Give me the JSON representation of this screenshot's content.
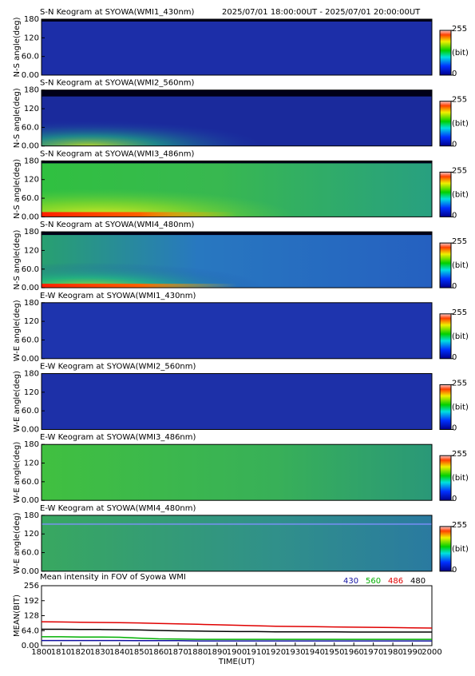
{
  "chart_data": [
    {
      "type": "heatmap",
      "title": "S-N Keogram at SYOWA(WMI1_430nm)",
      "subtitle": "2025/07/01 18:00:00UT - 2025/07/01 20:00:00UT",
      "ylabel": "N-S angle(deg)",
      "ylim": [
        0,
        180
      ],
      "yticks": [
        180,
        120,
        {
          "value": 60,
          "label": "60.0"
        },
        {
          "value": 0,
          "label": "0.00"
        }
      ],
      "colorbar": {
        "lim": [
          0,
          255
        ],
        "ticks": [
          255,
          0
        ],
        "label": "(bit)"
      }
    },
    {
      "type": "heatmap",
      "title": "S-N Keogram at SYOWA(WMI2_560nm)",
      "ylabel": "N-S angle(deg)",
      "ylim": [
        0,
        180
      ],
      "yticks": [
        180,
        120,
        {
          "value": 60,
          "label": "60.0"
        },
        {
          "value": 0,
          "label": "0.00"
        }
      ],
      "colorbar": {
        "lim": [
          0,
          255
        ],
        "ticks": [
          255,
          0
        ],
        "label": "(bit)"
      }
    },
    {
      "type": "heatmap",
      "title": "S-N Keogram at SYOWA(WMI3_486nm)",
      "ylabel": "N-S angle(deg)",
      "ylim": [
        0,
        180
      ],
      "yticks": [
        180,
        120,
        {
          "value": 60,
          "label": "60.0"
        },
        {
          "value": 0,
          "label": "0.00"
        }
      ],
      "colorbar": {
        "lim": [
          0,
          255
        ],
        "ticks": [
          255,
          0
        ],
        "label": "(bit)"
      }
    },
    {
      "type": "heatmap",
      "title": "S-N Keogram at SYOWA(WMI4_480nm)",
      "ylabel": "N-S angle(deg)",
      "ylim": [
        0,
        180
      ],
      "yticks": [
        180,
        120,
        {
          "value": 60,
          "label": "60.0"
        },
        {
          "value": 0,
          "label": "0.00"
        }
      ],
      "colorbar": {
        "lim": [
          0,
          255
        ],
        "ticks": [
          255,
          0
        ],
        "label": "(bit)"
      }
    },
    {
      "type": "heatmap",
      "title": "E-W Keogram at SYOWA(WMI1_430nm)",
      "ylabel": "W-E angle(deg)",
      "ylim": [
        0,
        180
      ],
      "yticks": [
        180,
        120,
        {
          "value": 60,
          "label": "60.0"
        },
        {
          "value": 0,
          "label": "0.00"
        }
      ],
      "colorbar": {
        "lim": [
          0,
          255
        ],
        "ticks": [
          255,
          0
        ],
        "label": "(bit)"
      }
    },
    {
      "type": "heatmap",
      "title": "E-W Keogram at SYOWA(WMI2_560nm)",
      "ylabel": "W-E angle(deg)",
      "ylim": [
        0,
        180
      ],
      "yticks": [
        180,
        120,
        {
          "value": 60,
          "label": "60.0"
        },
        {
          "value": 0,
          "label": "0.00"
        }
      ],
      "colorbar": {
        "lim": [
          0,
          255
        ],
        "ticks": [
          255,
          0
        ],
        "label": "(bit)"
      }
    },
    {
      "type": "heatmap",
      "title": "E-W Keogram at SYOWA(WMI3_486nm)",
      "ylabel": "W-E angle(deg)",
      "ylim": [
        0,
        180
      ],
      "yticks": [
        180,
        120,
        {
          "value": 60,
          "label": "60.0"
        },
        {
          "value": 0,
          "label": "0.00"
        }
      ],
      "colorbar": {
        "lim": [
          0,
          255
        ],
        "ticks": [
          255,
          0
        ],
        "label": "(bit)"
      }
    },
    {
      "type": "heatmap",
      "title": "E-W Keogram at SYOWA(WMI4_480nm)",
      "ylabel": "W-E angle(deg)",
      "ylim": [
        0,
        180
      ],
      "yticks": [
        180,
        120,
        {
          "value": 60,
          "label": "60.0"
        },
        {
          "value": 0,
          "label": "0.00"
        }
      ],
      "colorbar": {
        "lim": [
          0,
          255
        ],
        "ticks": [
          255,
          0
        ],
        "label": "(bit)"
      }
    },
    {
      "type": "line",
      "title": "Mean intensity in FOV of Syowa WMI",
      "xlabel": "TIME(UT)",
      "ylabel": "MEAN(BIT)",
      "x": [
        1800,
        1810,
        1820,
        1830,
        1840,
        1850,
        1860,
        1870,
        1880,
        1890,
        1900,
        1910,
        1920,
        1930,
        1940,
        1950,
        1960,
        1970,
        1980,
        1990,
        2000
      ],
      "xlim": [
        1800,
        2000
      ],
      "xticks": [
        1800,
        1810,
        1820,
        1830,
        1840,
        1850,
        1860,
        1870,
        1880,
        1890,
        1900,
        1910,
        1920,
        1930,
        1940,
        1950,
        1960,
        1970,
        1980,
        1990,
        2000
      ],
      "ylim": [
        0,
        256
      ],
      "yticks": [
        256,
        192,
        128,
        {
          "value": 64,
          "label": "64.0"
        },
        {
          "value": 0,
          "label": "0.00"
        }
      ],
      "series": [
        {
          "name": "430",
          "color": "#1010a0",
          "values": [
            22,
            22,
            22,
            22,
            22,
            21,
            21,
            21,
            20,
            20,
            20,
            20,
            20,
            20,
            20,
            20,
            20,
            20,
            20,
            20,
            20
          ]
        },
        {
          "name": "560",
          "color": "#00b000",
          "values": [
            38,
            38,
            37,
            37,
            36,
            32,
            29,
            28,
            27,
            27,
            27,
            27,
            27,
            27,
            27,
            27,
            27,
            27,
            27,
            27,
            27
          ]
        },
        {
          "name": "486",
          "color": "#e00000",
          "values": [
            102,
            101,
            100,
            99,
            98,
            97,
            95,
            93,
            91,
            89,
            87,
            85,
            83,
            82,
            81,
            80,
            79,
            78,
            77,
            76,
            75
          ]
        },
        {
          "name": "480",
          "color": "#000000",
          "values": [
            70,
            70,
            69,
            69,
            68,
            67,
            65,
            63,
            62,
            61,
            60,
            60,
            59,
            59,
            59,
            59,
            58,
            58,
            58,
            58,
            58
          ]
        }
      ]
    }
  ]
}
